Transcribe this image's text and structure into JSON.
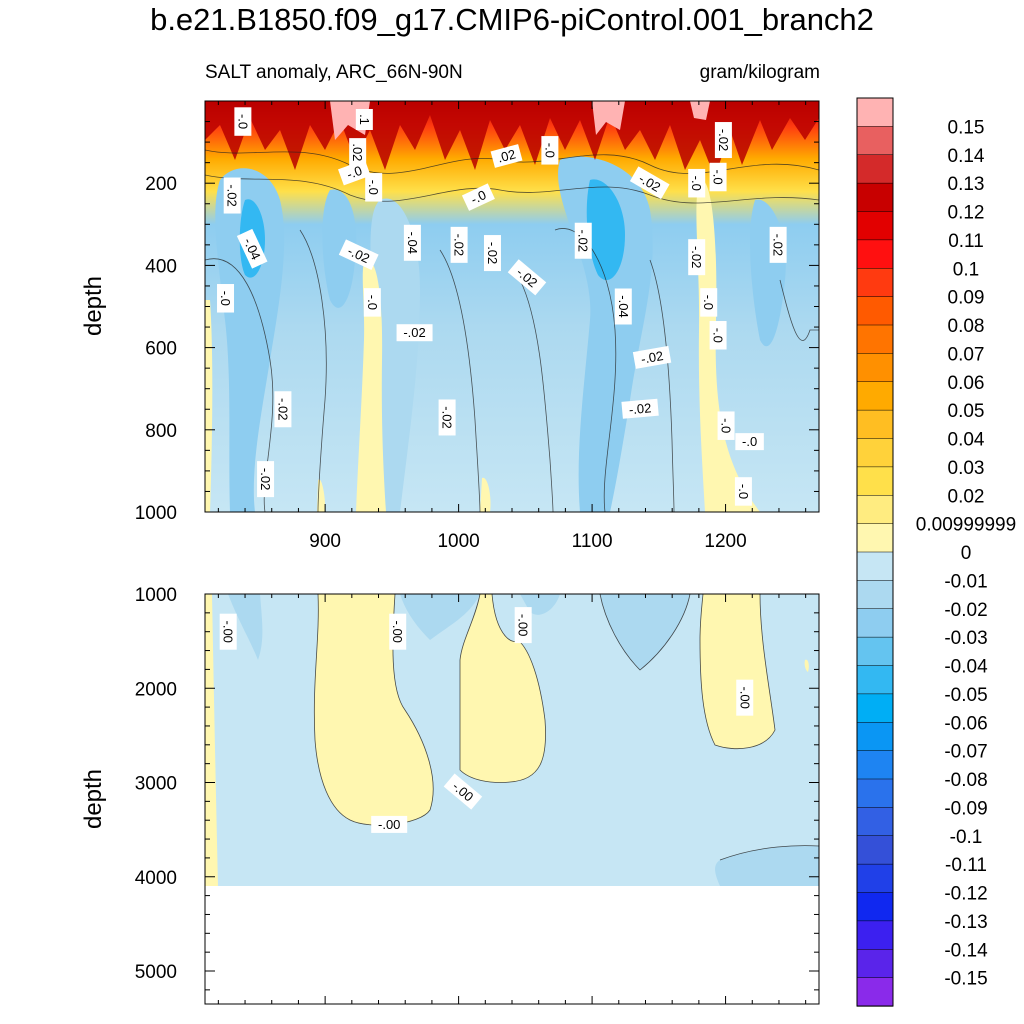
{
  "chart_data": {
    "type": "contour",
    "title": "b.e21.B1850.f09_g17.CMIP6-piControl.001_branch2",
    "subtitle_left": "SALT anomaly, ARC_66N-90N",
    "subtitle_right": "gram/kilogram",
    "ylabel": "depth",
    "panels": [
      {
        "name": "upper",
        "xlim": [
          810,
          1270
        ],
        "ylim": [
          0,
          1000
        ],
        "y_reversed": true,
        "x_ticks": [
          "900",
          "1000",
          "1100",
          "1200"
        ],
        "y_ticks": [
          "200",
          "400",
          "600",
          "800",
          "1000"
        ],
        "contour_labels": [
          {
            "text": "-.0",
            "x": 838,
            "y": 50,
            "rot": 90
          },
          {
            "text": ".1",
            "x": 929,
            "y": 45,
            "rot": 90
          },
          {
            "text": "-.02",
            "x": 1198,
            "y": 95,
            "rot": 90
          },
          {
            "text": ".02",
            "x": 924,
            "y": 125,
            "rot": 90
          },
          {
            "text": "-.0",
            "x": 922,
            "y": 175,
            "rot": -20
          },
          {
            "text": ".02",
            "x": 1036,
            "y": 135,
            "rot": -15
          },
          {
            "text": "-.0",
            "x": 1068,
            "y": 120,
            "rot": 90
          },
          {
            "text": "-.02",
            "x": 1143,
            "y": 200,
            "rot": 30
          },
          {
            "text": "-.0",
            "x": 1178,
            "y": 200,
            "rot": 90
          },
          {
            "text": "-.0",
            "x": 1194,
            "y": 185,
            "rot": 90
          },
          {
            "text": "-.0",
            "x": 1015,
            "y": 235,
            "rot": -25
          },
          {
            "text": "-.02",
            "x": 830,
            "y": 230,
            "rot": 90
          },
          {
            "text": "-.0",
            "x": 936,
            "y": 210,
            "rot": 90
          },
          {
            "text": "-.04",
            "x": 845,
            "y": 360,
            "rot": 65
          },
          {
            "text": "-.02",
            "x": 925,
            "y": 375,
            "rot": 25
          },
          {
            "text": "-.04",
            "x": 965,
            "y": 345,
            "rot": 90
          },
          {
            "text": "-.02",
            "x": 1000,
            "y": 350,
            "rot": 90
          },
          {
            "text": "-.02",
            "x": 1025,
            "y": 370,
            "rot": 90
          },
          {
            "text": "-.02",
            "x": 1093,
            "y": 340,
            "rot": 90
          },
          {
            "text": "-.02",
            "x": 1051,
            "y": 430,
            "rot": 40
          },
          {
            "text": "-.02",
            "x": 1178,
            "y": 380,
            "rot": 90
          },
          {
            "text": "-.02",
            "x": 1239,
            "y": 350,
            "rot": 90
          },
          {
            "text": "-.0",
            "x": 825,
            "y": 480,
            "rot": 90
          },
          {
            "text": "-.0",
            "x": 935,
            "y": 490,
            "rot": 90
          },
          {
            "text": "-.04",
            "x": 1123,
            "y": 500,
            "rot": 90
          },
          {
            "text": "-.0",
            "x": 1187,
            "y": 490,
            "rot": 90
          },
          {
            "text": "-.02",
            "x": 967,
            "y": 565,
            "rot": 0
          },
          {
            "text": "-.0",
            "x": 1194,
            "y": 570,
            "rot": 90
          },
          {
            "text": "-.02",
            "x": 1145,
            "y": 625,
            "rot": -10
          },
          {
            "text": "-.02",
            "x": 868,
            "y": 750,
            "rot": 90
          },
          {
            "text": "-.02",
            "x": 991,
            "y": 770,
            "rot": 90
          },
          {
            "text": "-.02",
            "x": 1136,
            "y": 750,
            "rot": -5
          },
          {
            "text": "-.0",
            "x": 1200,
            "y": 790,
            "rot": 90
          },
          {
            "text": "-.0",
            "x": 1218,
            "y": 830,
            "rot": 0
          },
          {
            "text": "-.02",
            "x": 855,
            "y": 920,
            "rot": 90
          },
          {
            "text": "-.0",
            "x": 1213,
            "y": 950,
            "rot": 90
          }
        ]
      },
      {
        "name": "lower",
        "xlim": [
          810,
          1270
        ],
        "ylim": [
          1000,
          5350
        ],
        "y_reversed": true,
        "x_ticks": [],
        "y_ticks": [
          "1000",
          "2000",
          "3000",
          "4000",
          "5000"
        ],
        "contour_labels": [
          {
            "text": "-.00",
            "x": 827,
            "y": 1400,
            "rot": 90
          },
          {
            "text": "-.00",
            "x": 954,
            "y": 1400,
            "rot": 90
          },
          {
            "text": "-.00",
            "x": 1048,
            "y": 1330,
            "rot": 90
          },
          {
            "text": "-.00",
            "x": 1214,
            "y": 2100,
            "rot": 90
          },
          {
            "text": "-.00",
            "x": 1003,
            "y": 3100,
            "rot": 40
          },
          {
            "text": "-.00",
            "x": 948,
            "y": 3450,
            "rot": 0
          }
        ]
      }
    ],
    "colorbar": {
      "labels": [
        "0.15",
        "0.14",
        "0.13",
        "0.12",
        "0.11",
        "0.1",
        "0.09",
        "0.08",
        "0.07",
        "0.06",
        "0.05",
        "0.04",
        "0.03",
        "0.02",
        "0.00999999",
        "0",
        "-0.01",
        "-0.02",
        "-0.03",
        "-0.04",
        "-0.05",
        "-0.06",
        "-0.07",
        "-0.08",
        "-0.09",
        "-0.1",
        "-0.11",
        "-0.12",
        "-0.13",
        "-0.14",
        "-0.15"
      ],
      "colors": [
        "#ffb3b3",
        "#e86060",
        "#d42a2a",
        "#c80000",
        "#e20000",
        "#ff1010",
        "#ff3a10",
        "#ff5a00",
        "#ff7400",
        "#ff9000",
        "#ffaa00",
        "#ffbe22",
        "#ffd23a",
        "#ffe04a",
        "#ffec80",
        "#fff7b0",
        "#c6e6f4",
        "#acd9f0",
        "#8ecdf0",
        "#64c4f0",
        "#33b8f2",
        "#00aef5",
        "#0a96f4",
        "#1e84f2",
        "#2a72ec",
        "#3260e4",
        "#3450d8",
        "#2040e8",
        "#1028f0",
        "#3c20f0",
        "#5a24ea",
        "#8a2aea"
      ]
    }
  }
}
